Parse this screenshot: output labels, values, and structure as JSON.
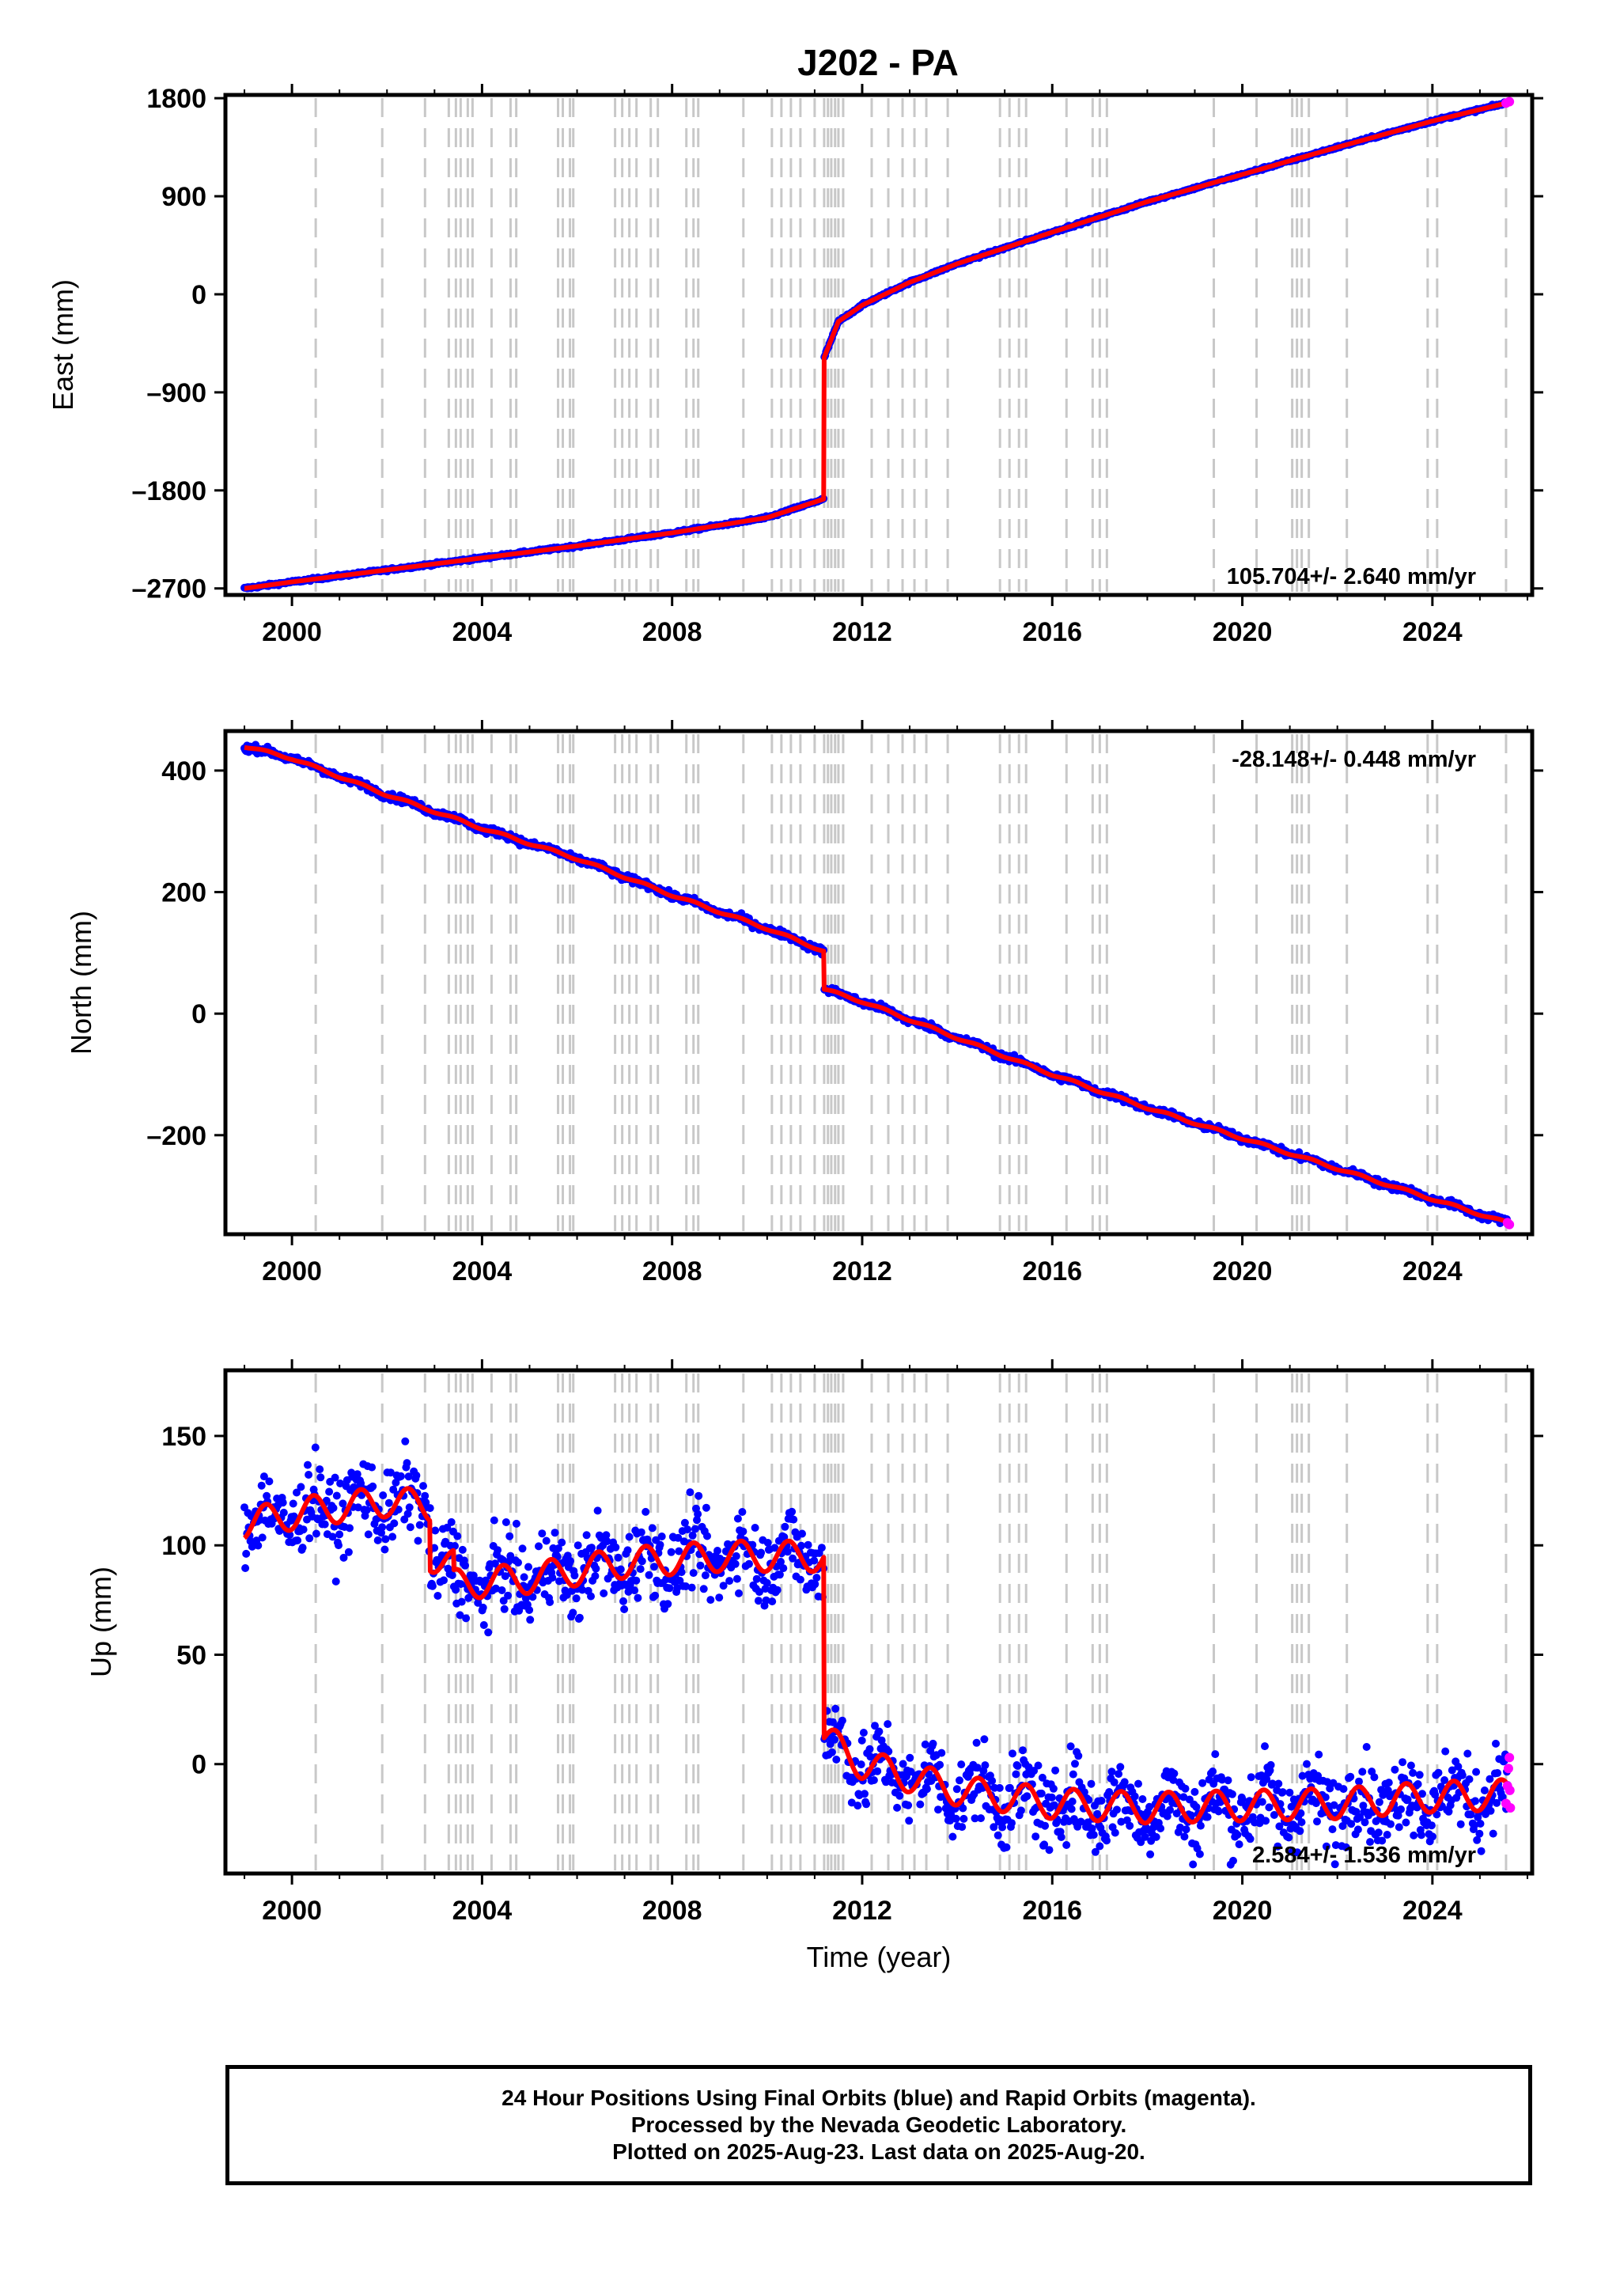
{
  "title": "J202 - PA",
  "footer": {
    "line1": "24 Hour Positions Using Final Orbits (blue) and Rapid Orbits (magenta).",
    "line2": "Processed by the Nevada Geodetic Laboratory.",
    "line3": "Plotted on 2025-Aug-23. Last data on 2025-Aug-20."
  },
  "colors": {
    "final_orbit": "#0000ff",
    "rapid_orbit": "#ff00ff",
    "model": "#ff0000",
    "equipment_change": "#c8c8c8"
  },
  "chart_data": [
    {
      "type": "scatter",
      "ylabel": "East (mm)",
      "xlabel": "",
      "xlim": [
        1998.6,
        2026.1
      ],
      "ylim": [
        -2760,
        1830
      ],
      "xticks": [
        2000,
        2004,
        2008,
        2012,
        2016,
        2020,
        2024
      ],
      "xticklabels": [
        "2000",
        "2004",
        "2008",
        "2012",
        "2016",
        "2020",
        "2024"
      ],
      "yticks": [
        -2700,
        -1800,
        -900,
        0,
        900,
        1800
      ],
      "yticklabels": [
        "–2700",
        "–1800",
        "–900",
        "0",
        "900",
        "1800"
      ],
      "rate": "105.704+/- 2.640 mm/yr",
      "rate_position": "bottom-right",
      "x": [
        1999.0,
        2000.0,
        2002.0,
        2004.0,
        2006.0,
        2008.0,
        2010.0,
        2011.19,
        2011.2,
        2011.5,
        2012.0,
        2013.0,
        2014.0,
        2016.0,
        2018.0,
        2020.0,
        2022.0,
        2024.0,
        2025.6
      ],
      "y": [
        -2700,
        -2640,
        -2530,
        -2420,
        -2310,
        -2190,
        -2050,
        -1880,
        -580,
        -250,
        -100,
        110,
        280,
        570,
        850,
        1100,
        1350,
        1590,
        1760
      ],
      "noise": 6,
      "seasonal": 0,
      "rapid_x": [
        2025.55,
        2025.62
      ],
      "rapid_y": [
        1755,
        1768
      ]
    },
    {
      "type": "scatter",
      "ylabel": "North (mm)",
      "xlabel": "",
      "xlim": [
        1998.6,
        2026.1
      ],
      "ylim": [
        -363,
        465
      ],
      "xticks": [
        2000,
        2004,
        2008,
        2012,
        2016,
        2020,
        2024
      ],
      "xticklabels": [
        "2000",
        "2004",
        "2008",
        "2012",
        "2016",
        "2020",
        "2024"
      ],
      "yticks": [
        -200,
        0,
        200,
        400
      ],
      "yticklabels": [
        "–200",
        "0",
        "200",
        "400"
      ],
      "rate": "-28.148+/- 0.448 mm/yr",
      "rate_position": "top-right",
      "x": [
        1999.0,
        2000.0,
        2002.0,
        2004.0,
        2006.0,
        2008.0,
        2010.0,
        2011.19,
        2011.2,
        2012.0,
        2014.0,
        2016.0,
        2018.0,
        2020.0,
        2022.0,
        2024.0,
        2025.6
      ],
      "y": [
        440,
        420,
        360,
        305,
        255,
        195,
        140,
        103,
        40,
        20,
        -40,
        -100,
        -155,
        -205,
        -255,
        -305,
        -345
      ],
      "noise": 3,
      "seasonal": 2,
      "rapid_x": [
        2025.58,
        2025.62
      ],
      "rapid_y": [
        -344,
        -347
      ]
    },
    {
      "type": "scatter",
      "ylabel": "Up (mm)",
      "xlabel": "Time (year)",
      "xlim": [
        1998.6,
        2026.1
      ],
      "ylim": [
        -50,
        180
      ],
      "xticks": [
        2000,
        2004,
        2008,
        2012,
        2016,
        2020,
        2024
      ],
      "xticklabels": [
        "2000",
        "2004",
        "2008",
        "2012",
        "2016",
        "2020",
        "2024"
      ],
      "yticks": [
        0,
        50,
        100,
        150
      ],
      "yticklabels": [
        "0",
        "50",
        "100",
        "150"
      ],
      "rate": "2.584+/- 1.536 mm/yr",
      "rate_position": "bottom-right",
      "x": [
        1999.0,
        2000.5,
        2002.0,
        2002.9,
        2002.91,
        2003.4,
        2003.41,
        2005.0,
        2007.0,
        2009.0,
        2011.19,
        2011.2,
        2012.0,
        2014.0,
        2016.0,
        2018.0,
        2020.0,
        2022.0,
        2024.0,
        2025.6
      ],
      "y": [
        110,
        116,
        120,
        118,
        95,
        91,
        82,
        85,
        92,
        95,
        95,
        12,
        0,
        -12,
        -18,
        -20,
        -19,
        -18,
        -15,
        -14
      ],
      "noise": 9,
      "seasonal": 7,
      "rapid_x": [
        2025.55,
        2025.58,
        2025.6,
        2025.62,
        2025.63,
        2025.64
      ],
      "rapid_y": [
        -18,
        -10,
        -2,
        3,
        -12,
        -20
      ]
    }
  ],
  "equipment_changes": [
    2000.5,
    2001.9,
    2002.8,
    2003.3,
    2003.45,
    2003.55,
    2003.7,
    2003.8,
    2004.2,
    2004.6,
    2004.72,
    2005.6,
    2005.7,
    2005.85,
    2005.92,
    2006.8,
    2006.95,
    2007.1,
    2007.25,
    2007.55,
    2007.7,
    2008.3,
    2008.45,
    2008.55,
    2009.5,
    2010.1,
    2010.3,
    2010.5,
    2010.7,
    2011.0,
    2011.2,
    2011.28,
    2011.35,
    2011.43,
    2011.5,
    2011.6,
    2012.2,
    2012.55,
    2012.85,
    2013.1,
    2013.35,
    2013.8,
    2014.9,
    2015.1,
    2015.3,
    2015.45,
    2016.3,
    2016.85,
    2017.0,
    2017.15,
    2019.4,
    2020.3,
    2021.05,
    2021.15,
    2021.25,
    2021.4,
    2022.2,
    2023.9,
    2024.1,
    2025.55
  ]
}
